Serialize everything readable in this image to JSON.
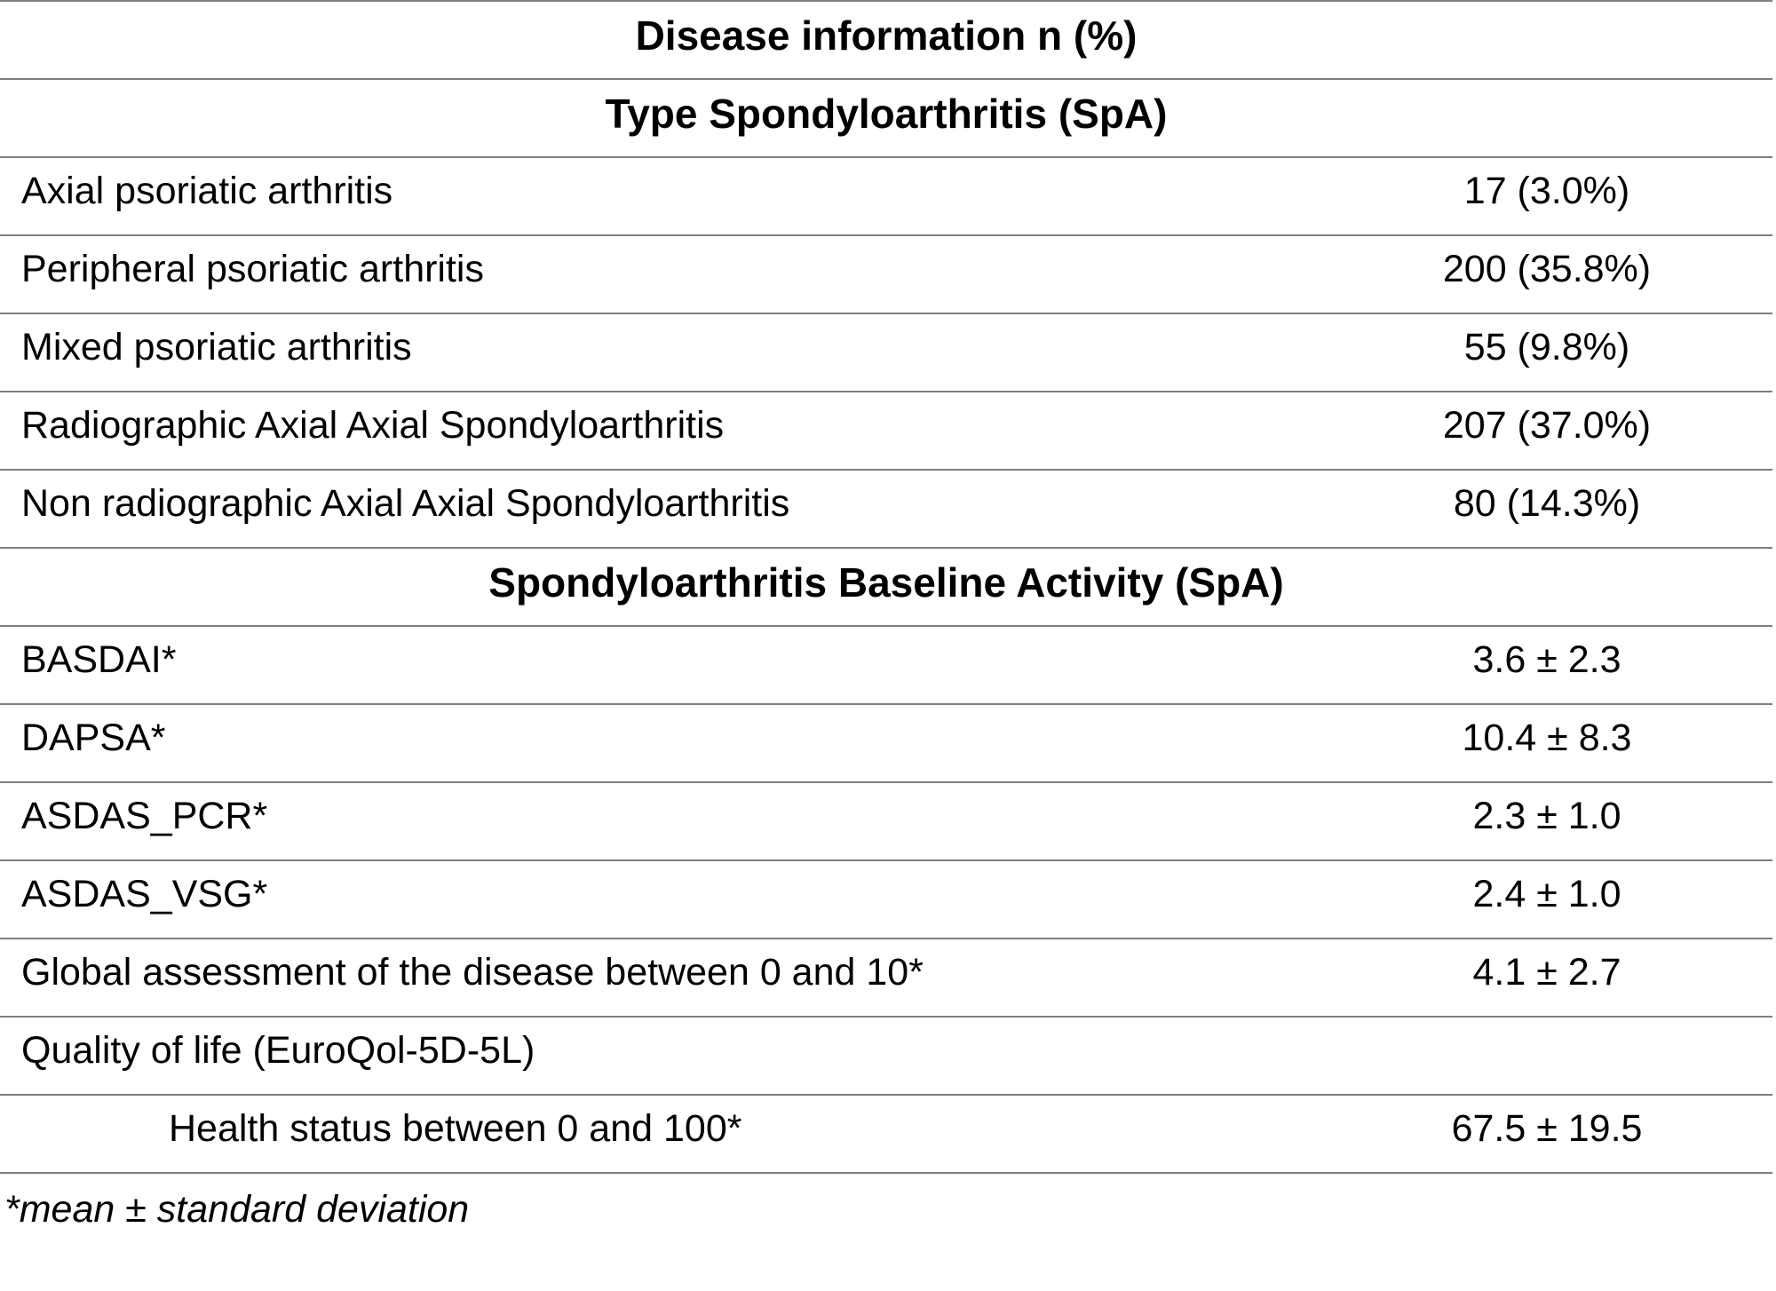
{
  "table": {
    "title": "Disease information n (%)",
    "sections": [
      {
        "header": "Type Spondyloarthritis (SpA)",
        "rows": [
          {
            "label": "Axial psoriatic arthritis",
            "value": "17 (3.0%)"
          },
          {
            "label": "Peripheral psoriatic arthritis",
            "value": "200 (35.8%)"
          },
          {
            "label": "Mixed psoriatic arthritis",
            "value": "55 (9.8%)"
          },
          {
            "label": "Radiographic Axial Axial Spondyloarthritis",
            "value": "207 (37.0%)"
          },
          {
            "label": "Non radiographic Axial Axial Spondyloarthritis",
            "value": "80 (14.3%)"
          }
        ]
      },
      {
        "header": "Spondyloarthritis Baseline Activity (SpA)",
        "rows": [
          {
            "label": "BASDAI*",
            "value": "3.6 ± 2.3"
          },
          {
            "label": "DAPSA*",
            "value": "10.4 ± 8.3"
          },
          {
            "label": "ASDAS_PCR*",
            "value": "2.3 ± 1.0"
          },
          {
            "label": "ASDAS_VSG*",
            "value": "2.4 ± 1.0"
          },
          {
            "label": "Global assessment of the disease between 0 and 10*",
            "value": "4.1 ± 2.7"
          },
          {
            "label": "Quality of life (EuroQol-5D-5L)",
            "value": ""
          },
          {
            "label": "Health status between 0 and 100*",
            "value": "67.5 ± 19.5"
          }
        ]
      }
    ],
    "footnote": "*mean ± standard deviation"
  },
  "colors": {
    "line": "#7f7f7f",
    "text": "#000000",
    "background": "#ffffff"
  }
}
